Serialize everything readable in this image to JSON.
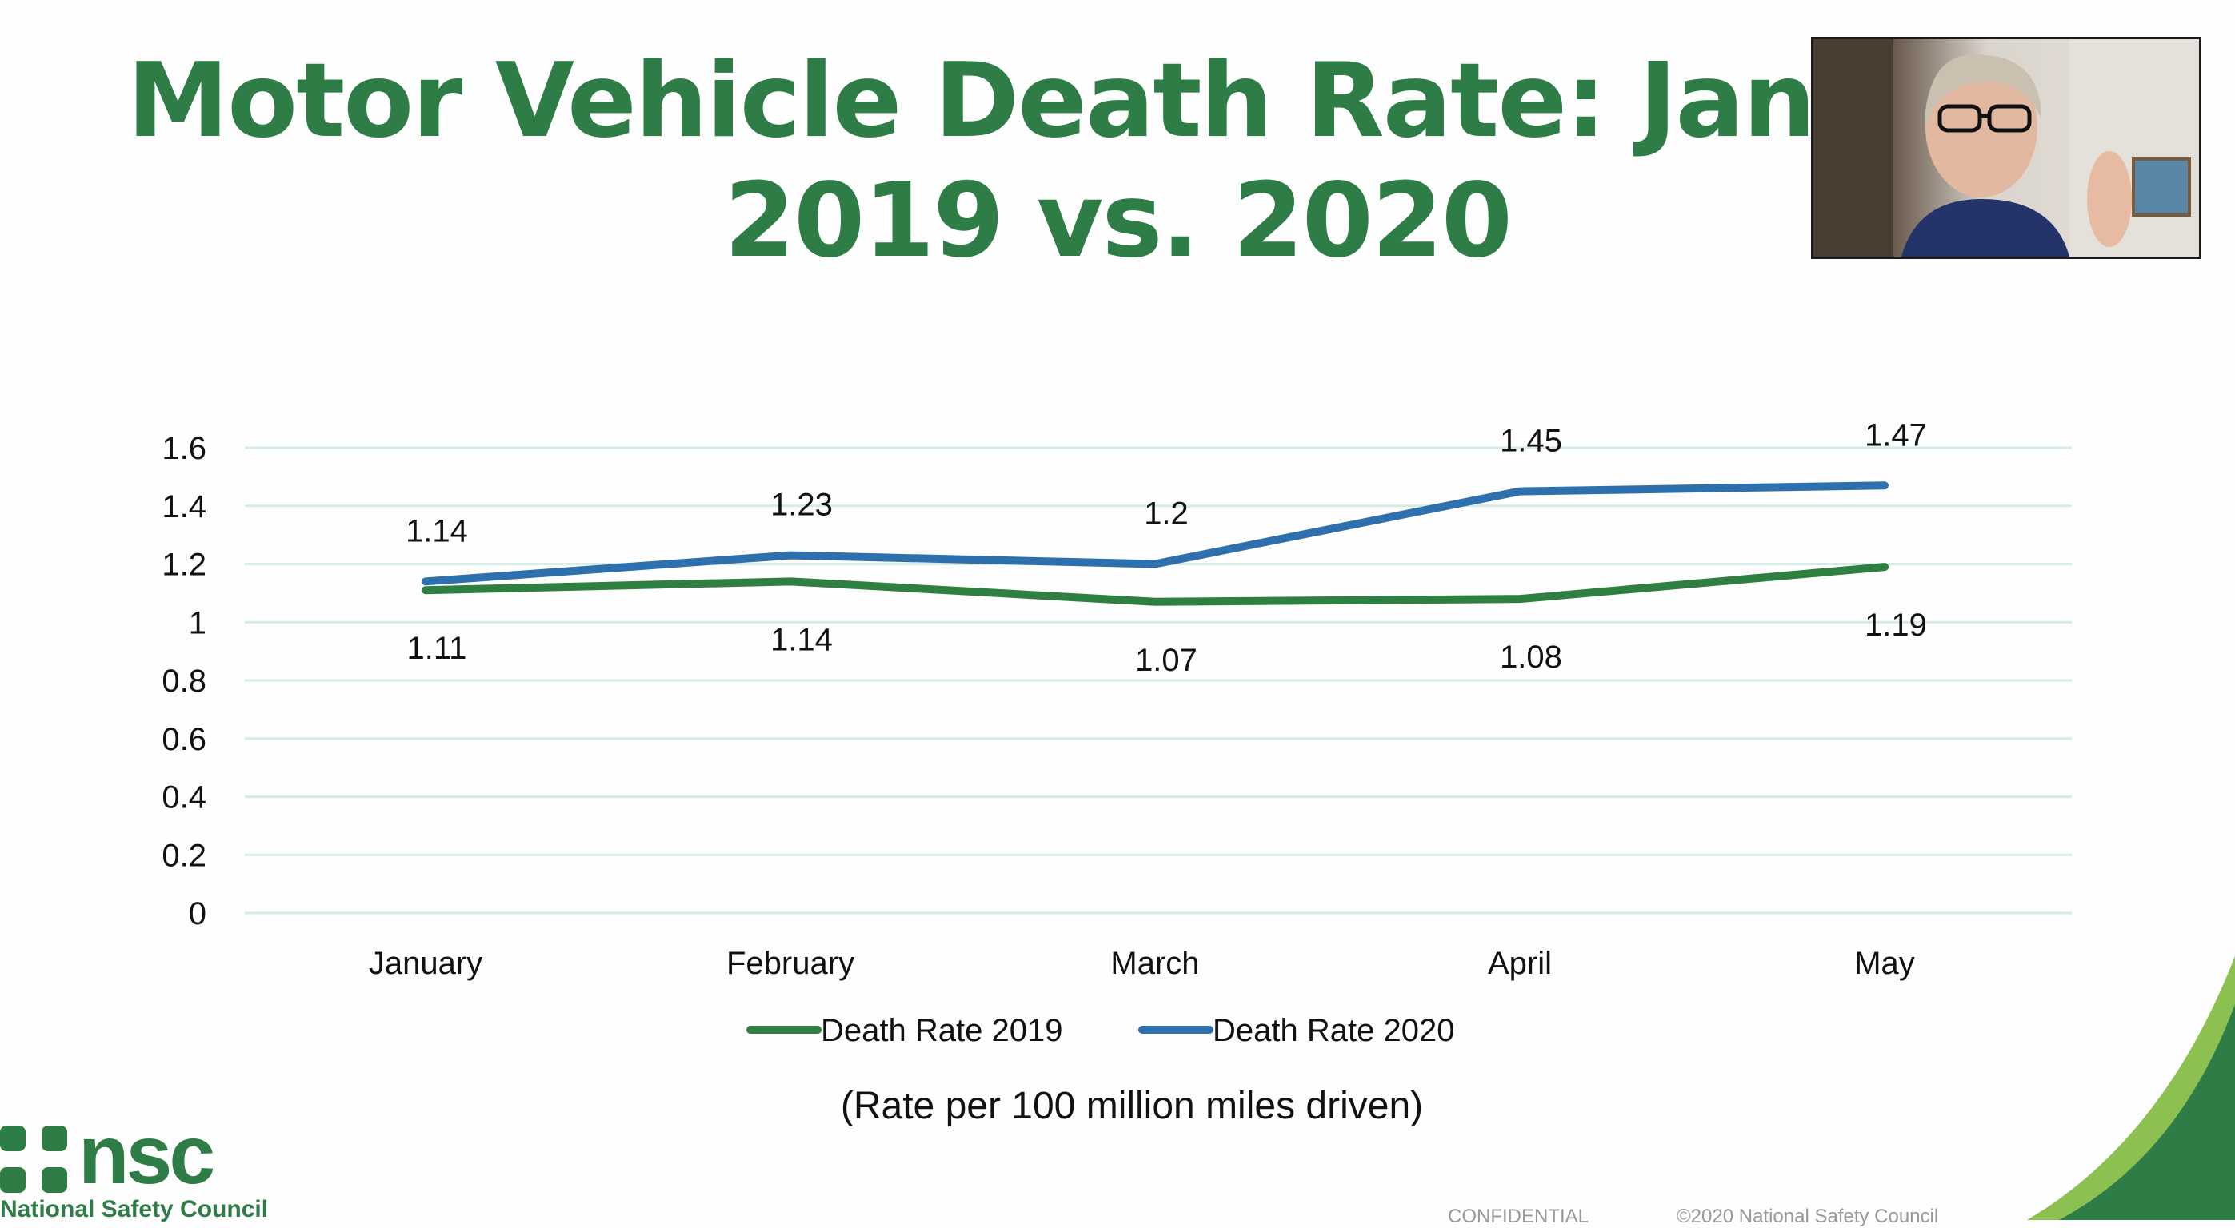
{
  "slide": {
    "title_line1": "Motor Vehicle Death Rate: January-",
    "title_line2": "2019 vs. 2020",
    "note": "(Rate per 100 million miles driven)",
    "logo_text": "nsc",
    "logo_subtext": "National Safety Council",
    "footer_left": "CONFIDENTIAL",
    "footer_right": "©2020 National Safety Council"
  },
  "colors": {
    "title": "#2e7d46",
    "series_2019": "#2f7f40",
    "series_2020": "#2e6fad",
    "grid": "#d5ece6"
  },
  "chart_data": {
    "type": "line",
    "categories": [
      "January",
      "February",
      "March",
      "April",
      "May"
    ],
    "series": [
      {
        "name": "Death Rate 2019",
        "values": [
          1.11,
          1.14,
          1.07,
          1.08,
          1.19
        ]
      },
      {
        "name": "Death Rate 2020",
        "values": [
          1.14,
          1.23,
          1.2,
          1.45,
          1.47
        ]
      }
    ],
    "yticks": [
      "0",
      "0.2",
      "0.4",
      "0.6",
      "0.8",
      "1",
      "1.2",
      "1.4",
      "1.6"
    ],
    "ylim": [
      0,
      1.6
    ],
    "grid": true,
    "legend": "bottom",
    "data_labels": true
  }
}
